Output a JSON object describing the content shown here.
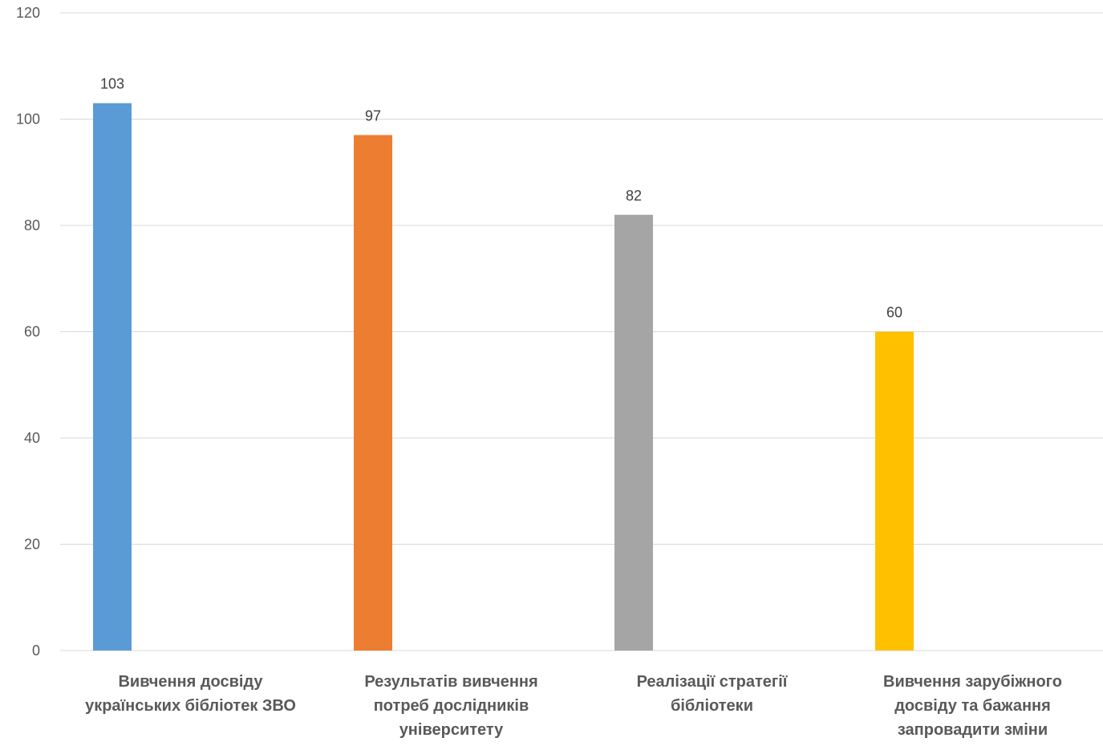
{
  "chart_data": {
    "type": "bar",
    "title": "",
    "xlabel": "",
    "ylabel": "",
    "ylim": [
      0,
      120
    ],
    "yticks": [
      0,
      20,
      40,
      60,
      80,
      100,
      120
    ],
    "grid": true,
    "legend": "none",
    "categories": [
      [
        "Вивчення досвіду",
        "українських бібліотек ЗВО"
      ],
      [
        "Результатів вивчення",
        "потреб дослідників",
        "університету"
      ],
      [
        "Реалізації стратегії",
        "бібліотеки"
      ],
      [
        "Вивчення зарубіжного",
        "досвіду та бажання",
        "запровадити зміни"
      ]
    ],
    "values": [
      103,
      97,
      82,
      60
    ],
    "colors": [
      "#5b9bd5",
      "#ed7d31",
      "#a5a5a5",
      "#ffc000"
    ]
  }
}
